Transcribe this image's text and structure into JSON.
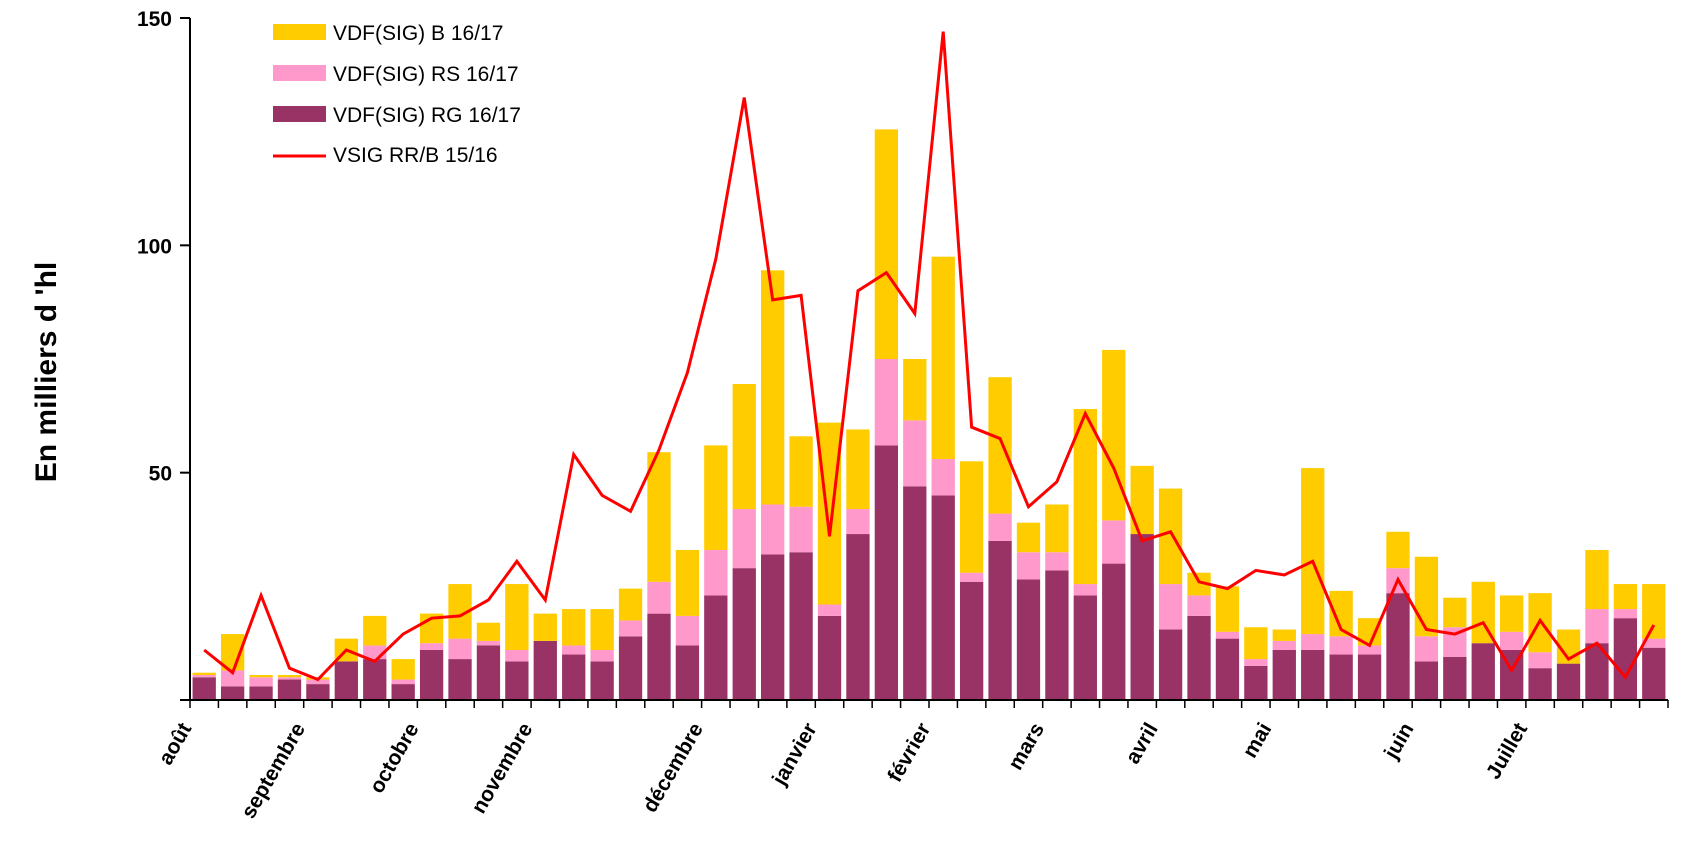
{
  "chart_data": {
    "type": "bar",
    "stacked": true,
    "title": "",
    "xlabel": "",
    "ylabel": "En milliers d 'hl",
    "ylim": [
      0,
      150
    ],
    "yticks": [
      50,
      100,
      150
    ],
    "grid": false,
    "legend_position": "top-left",
    "month_labels": [
      {
        "label": "août",
        "week": 0
      },
      {
        "label": "septembre",
        "week": 4
      },
      {
        "label": "octobre",
        "week": 8
      },
      {
        "label": "novembre",
        "week": 12
      },
      {
        "label": "décembre",
        "week": 18
      },
      {
        "label": "janvier",
        "week": 22
      },
      {
        "label": "février",
        "week": 26
      },
      {
        "label": "mars",
        "week": 30
      },
      {
        "label": "avril",
        "week": 34
      },
      {
        "label": "mai",
        "week": 38
      },
      {
        "label": "juin",
        "week": 43
      },
      {
        "label": "Juillet",
        "week": 47
      }
    ],
    "series": [
      {
        "name": "VDF(SIG) RG 16/17",
        "kind": "bar",
        "color": "#993366",
        "values": [
          5,
          3,
          3,
          4.5,
          3.5,
          8.5,
          9,
          3.5,
          11,
          9,
          12,
          8.5,
          13,
          10,
          8.5,
          14,
          19,
          12,
          23,
          29,
          32,
          32.5,
          18.5,
          36.5,
          56,
          47,
          45,
          26,
          35,
          26.5,
          28.5,
          23,
          30,
          36.5,
          15.5,
          18.5,
          13.5,
          7.5,
          11,
          11,
          10,
          10,
          23.5,
          8.5,
          9.5,
          12.5,
          11,
          7,
          8,
          12.5,
          18,
          11.5
        ]
      },
      {
        "name": "VDF(SIG) RS 16/17",
        "kind": "bar",
        "color": "#ff99cc",
        "values": [
          0.5,
          3.5,
          2,
          0.5,
          1,
          0,
          3,
          1,
          1.5,
          4.5,
          1,
          2.5,
          0,
          2,
          2.5,
          3.5,
          7,
          6.5,
          10,
          13,
          11,
          10,
          2.5,
          5.5,
          19,
          14.5,
          8,
          2,
          6,
          6,
          4,
          2.5,
          9.5,
          0,
          10,
          4.5,
          1.5,
          1.5,
          2,
          3.5,
          4,
          2,
          5.5,
          5.5,
          6.5,
          0,
          4,
          3.5,
          0,
          7.5,
          2,
          2
        ]
      },
      {
        "name": "VDF(SIG) B 16/17",
        "kind": "bar",
        "color": "#ffcc00",
        "values": [
          0.5,
          8,
          0.5,
          0.5,
          0.5,
          5,
          6.5,
          4.5,
          6.5,
          12,
          4,
          14.5,
          6,
          8,
          9,
          7,
          28.5,
          14.5,
          23,
          27.5,
          51.5,
          15.5,
          40,
          17.5,
          50.5,
          13.5,
          44.5,
          24.5,
          30,
          6.5,
          10.5,
          38.5,
          37.5,
          15,
          21,
          5,
          10,
          7,
          2.5,
          36.5,
          10,
          6,
          8,
          17.5,
          6.5,
          13.5,
          8,
          13,
          7.5,
          13,
          5.5,
          12
        ]
      },
      {
        "name": "VSIG RR/B 15/16",
        "kind": "line",
        "color": "#ff0000",
        "values": [
          11,
          6,
          23,
          7,
          4.5,
          11,
          8.5,
          14.5,
          18,
          18.5,
          22,
          30.5,
          22,
          54,
          45,
          41.5,
          55,
          72,
          97,
          132.5,
          88,
          89,
          36,
          90,
          94,
          85,
          147,
          60,
          57.5,
          42.5,
          48,
          63,
          51,
          35,
          37,
          26,
          24.5,
          28.5,
          27.5,
          30.5,
          15.5,
          12,
          26.5,
          15.5,
          14.5,
          17,
          6.5,
          17.5,
          9,
          12.5,
          5,
          16.5
        ]
      }
    ]
  }
}
